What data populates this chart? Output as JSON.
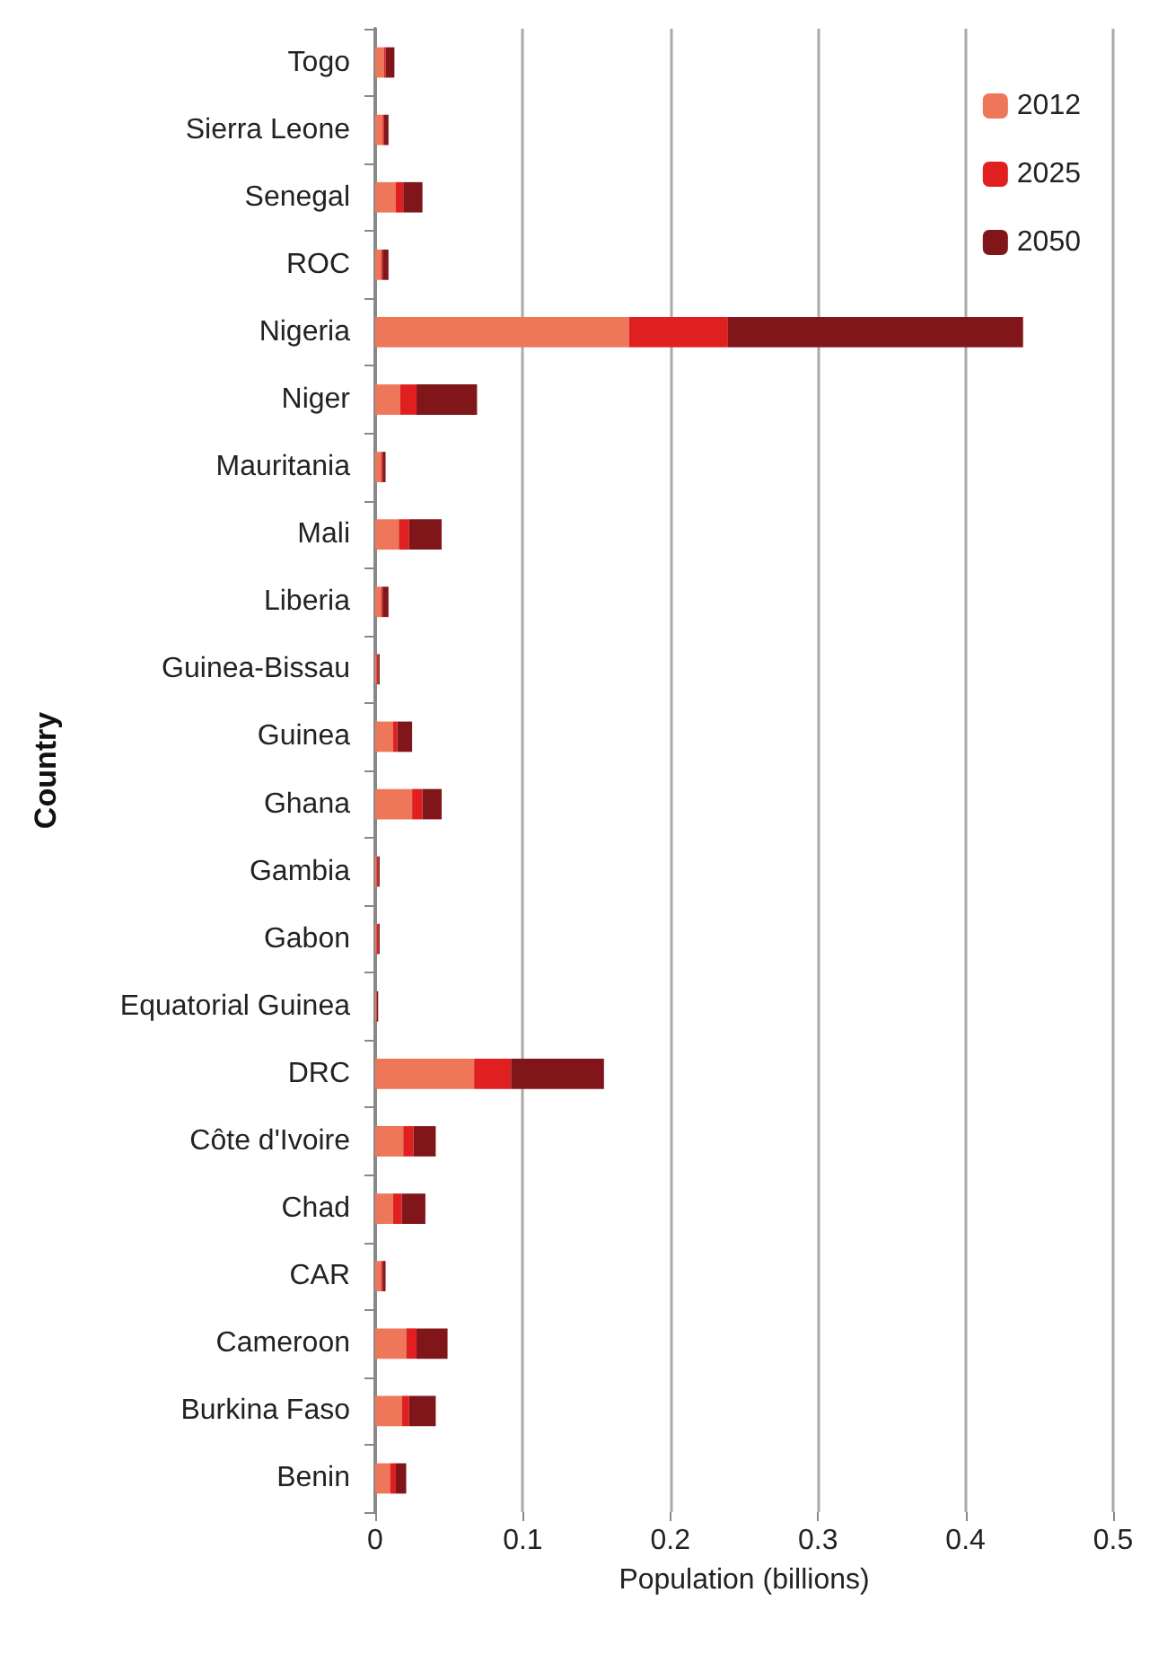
{
  "chart_data": {
    "type": "bar",
    "orientation": "horizontal",
    "stacked": true,
    "xlabel": "Population (billions)",
    "ylabel": "Country",
    "categories": [
      "Togo",
      "Sierra Leone",
      "Senegal",
      "ROC",
      "Nigeria",
      "Niger",
      "Mauritania",
      "Mali",
      "Liberia",
      "Guinea-Bissau",
      "Guinea",
      "Ghana",
      "Gambia",
      "Gabon",
      "Equatorial Guinea",
      "DRC",
      "Côte d'Ivoire",
      "Chad",
      "CAR",
      "Cameroon",
      "Burkina Faso",
      "Benin"
    ],
    "series": [
      {
        "name": "2012",
        "color": "#ee7659",
        "values": [
          0.006,
          0.005,
          0.014,
          0.004,
          0.172,
          0.017,
          0.004,
          0.016,
          0.004,
          0.001,
          0.012,
          0.025,
          0.001,
          0.001,
          0.001,
          0.067,
          0.019,
          0.012,
          0.004,
          0.021,
          0.018,
          0.01
        ]
      },
      {
        "name": "2025",
        "color": "#e02020",
        "values": [
          0.001,
          0.001,
          0.005,
          0.001,
          0.067,
          0.011,
          0.001,
          0.007,
          0.001,
          0.001,
          0.003,
          0.007,
          0.001,
          0.001,
          0,
          0.025,
          0.007,
          0.006,
          0.001,
          0.007,
          0.005,
          0.004
        ]
      },
      {
        "name": "2050",
        "color": "#80161a",
        "values": [
          0.006,
          0.003,
          0.013,
          0.004,
          0.2,
          0.041,
          0.002,
          0.022,
          0.004,
          0.001,
          0.01,
          0.013,
          0.001,
          0.001,
          0.001,
          0.063,
          0.015,
          0.016,
          0.002,
          0.021,
          0.018,
          0.007
        ]
      }
    ],
    "xlim": [
      0,
      0.5
    ],
    "xticks": [
      0,
      0.1,
      0.2,
      0.3,
      0.4,
      0.5
    ],
    "grid": "x",
    "legend": "top right"
  }
}
